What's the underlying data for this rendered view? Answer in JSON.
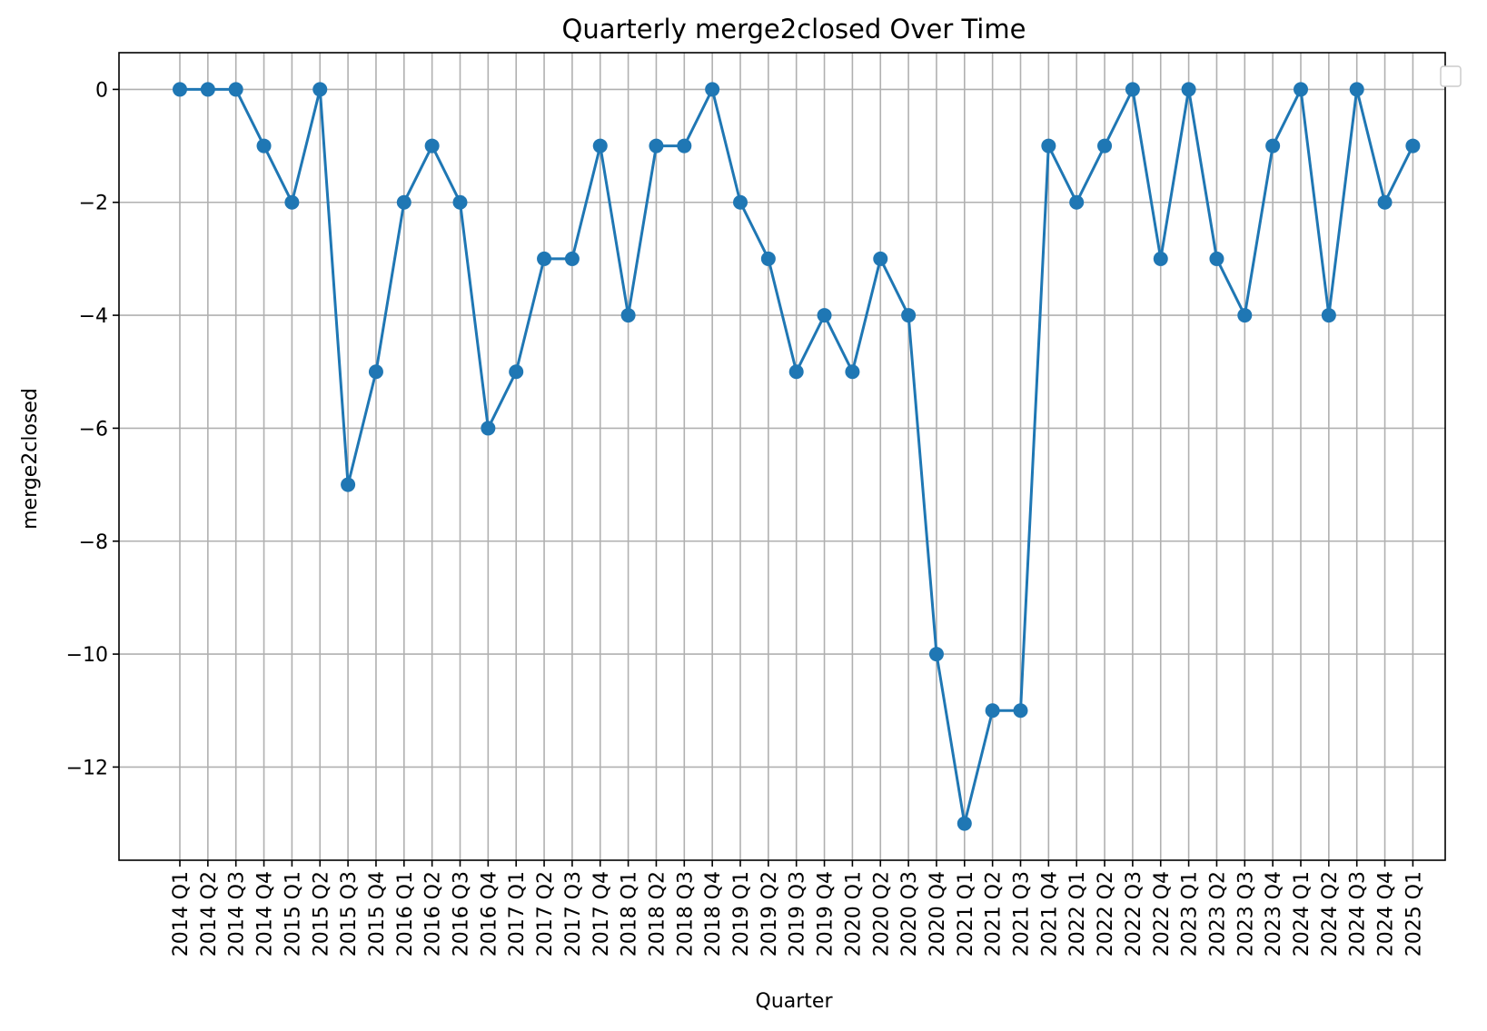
{
  "chart_data": {
    "type": "line",
    "title": "Quarterly merge2closed Over Time",
    "xlabel": "Quarter",
    "ylabel": "merge2closed",
    "ylim": [
      -13.65,
      0.65
    ],
    "yticks": [
      0,
      -2,
      -4,
      -6,
      -8,
      -10,
      -12
    ],
    "ytick_labels": [
      "0",
      "−2",
      "−4",
      "−6",
      "−8",
      "−10",
      "−12"
    ],
    "grid": true,
    "legend": "top-right, empty",
    "colors": {
      "series": "#1f77b4"
    },
    "categories": [
      "2014 Q1",
      "2014 Q2",
      "2014 Q3",
      "2014 Q4",
      "2015 Q1",
      "2015 Q2",
      "2015 Q3",
      "2015 Q4",
      "2016 Q1",
      "2016 Q2",
      "2016 Q3",
      "2016 Q4",
      "2017 Q1",
      "2017 Q2",
      "2017 Q3",
      "2017 Q4",
      "2018 Q1",
      "2018 Q2",
      "2018 Q3",
      "2018 Q4",
      "2019 Q1",
      "2019 Q2",
      "2019 Q3",
      "2019 Q4",
      "2020 Q1",
      "2020 Q2",
      "2020 Q3",
      "2020 Q4",
      "2021 Q1",
      "2021 Q2",
      "2021 Q3",
      "2021 Q4",
      "2022 Q1",
      "2022 Q2",
      "2022 Q3",
      "2022 Q4",
      "2023 Q1",
      "2023 Q2",
      "2023 Q3",
      "2023 Q4",
      "2024 Q1",
      "2024 Q2",
      "2024 Q3",
      "2024 Q4",
      "2025 Q1"
    ],
    "series": [
      {
        "values": [
          0,
          0,
          0,
          -1,
          -2,
          0,
          -7,
          -5,
          -2,
          -1,
          -2,
          -6,
          -5,
          -3,
          -3,
          -1,
          -4,
          -1,
          -1,
          0,
          -2,
          -3,
          -5,
          -4,
          -5,
          -3,
          -4,
          -10,
          -13,
          -11,
          -11,
          -1,
          -2,
          -1,
          0,
          -3,
          0,
          -3,
          -4,
          -1,
          0,
          -4,
          0,
          -2,
          -1
        ]
      }
    ]
  }
}
